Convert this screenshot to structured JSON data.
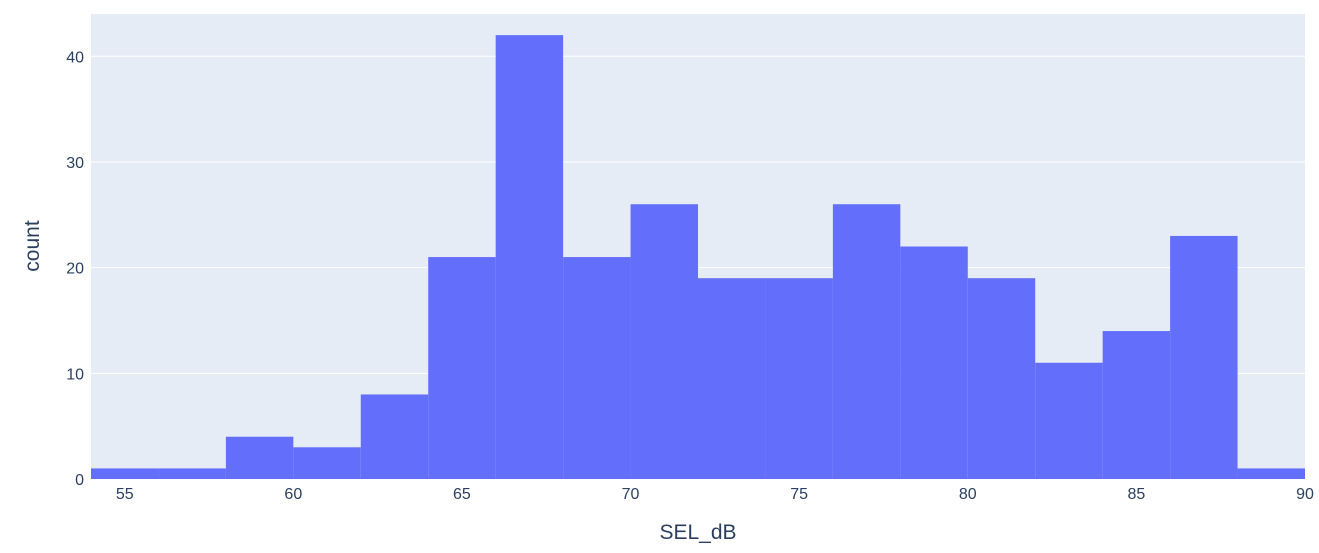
{
  "chart_data": {
    "type": "bar",
    "subtype": "histogram",
    "xlabel": "SEL_dB",
    "ylabel": "count",
    "xlim": [
      54,
      90
    ],
    "ylim": [
      0,
      44
    ],
    "bin_width": 2,
    "bins": [
      {
        "x0": 54,
        "x1": 56,
        "count": 1
      },
      {
        "x0": 56,
        "x1": 58,
        "count": 1
      },
      {
        "x0": 58,
        "x1": 60,
        "count": 4
      },
      {
        "x0": 60,
        "x1": 62,
        "count": 3
      },
      {
        "x0": 62,
        "x1": 64,
        "count": 8
      },
      {
        "x0": 64,
        "x1": 66,
        "count": 21
      },
      {
        "x0": 66,
        "x1": 68,
        "count": 42
      },
      {
        "x0": 68,
        "x1": 70,
        "count": 21
      },
      {
        "x0": 70,
        "x1": 72,
        "count": 26
      },
      {
        "x0": 72,
        "x1": 74,
        "count": 19
      },
      {
        "x0": 74,
        "x1": 76,
        "count": 19
      },
      {
        "x0": 76,
        "x1": 78,
        "count": 26
      },
      {
        "x0": 78,
        "x1": 80,
        "count": 22
      },
      {
        "x0": 80,
        "x1": 82,
        "count": 19
      },
      {
        "x0": 82,
        "x1": 84,
        "count": 11
      },
      {
        "x0": 84,
        "x1": 86,
        "count": 14
      },
      {
        "x0": 86,
        "x1": 88,
        "count": 23
      },
      {
        "x0": 88,
        "x1": 90,
        "count": 1
      }
    ],
    "x_ticks": [
      "55",
      "60",
      "65",
      "70",
      "75",
      "80",
      "85",
      "90"
    ],
    "y_ticks": [
      "0",
      "10",
      "20",
      "30",
      "40"
    ],
    "grid": "horizontal",
    "legend": "none",
    "colors": {
      "bar": "#636efa",
      "plot_background": "#e5ecf6",
      "gridline": "#ffffff",
      "text": "#2a3f5f"
    }
  }
}
